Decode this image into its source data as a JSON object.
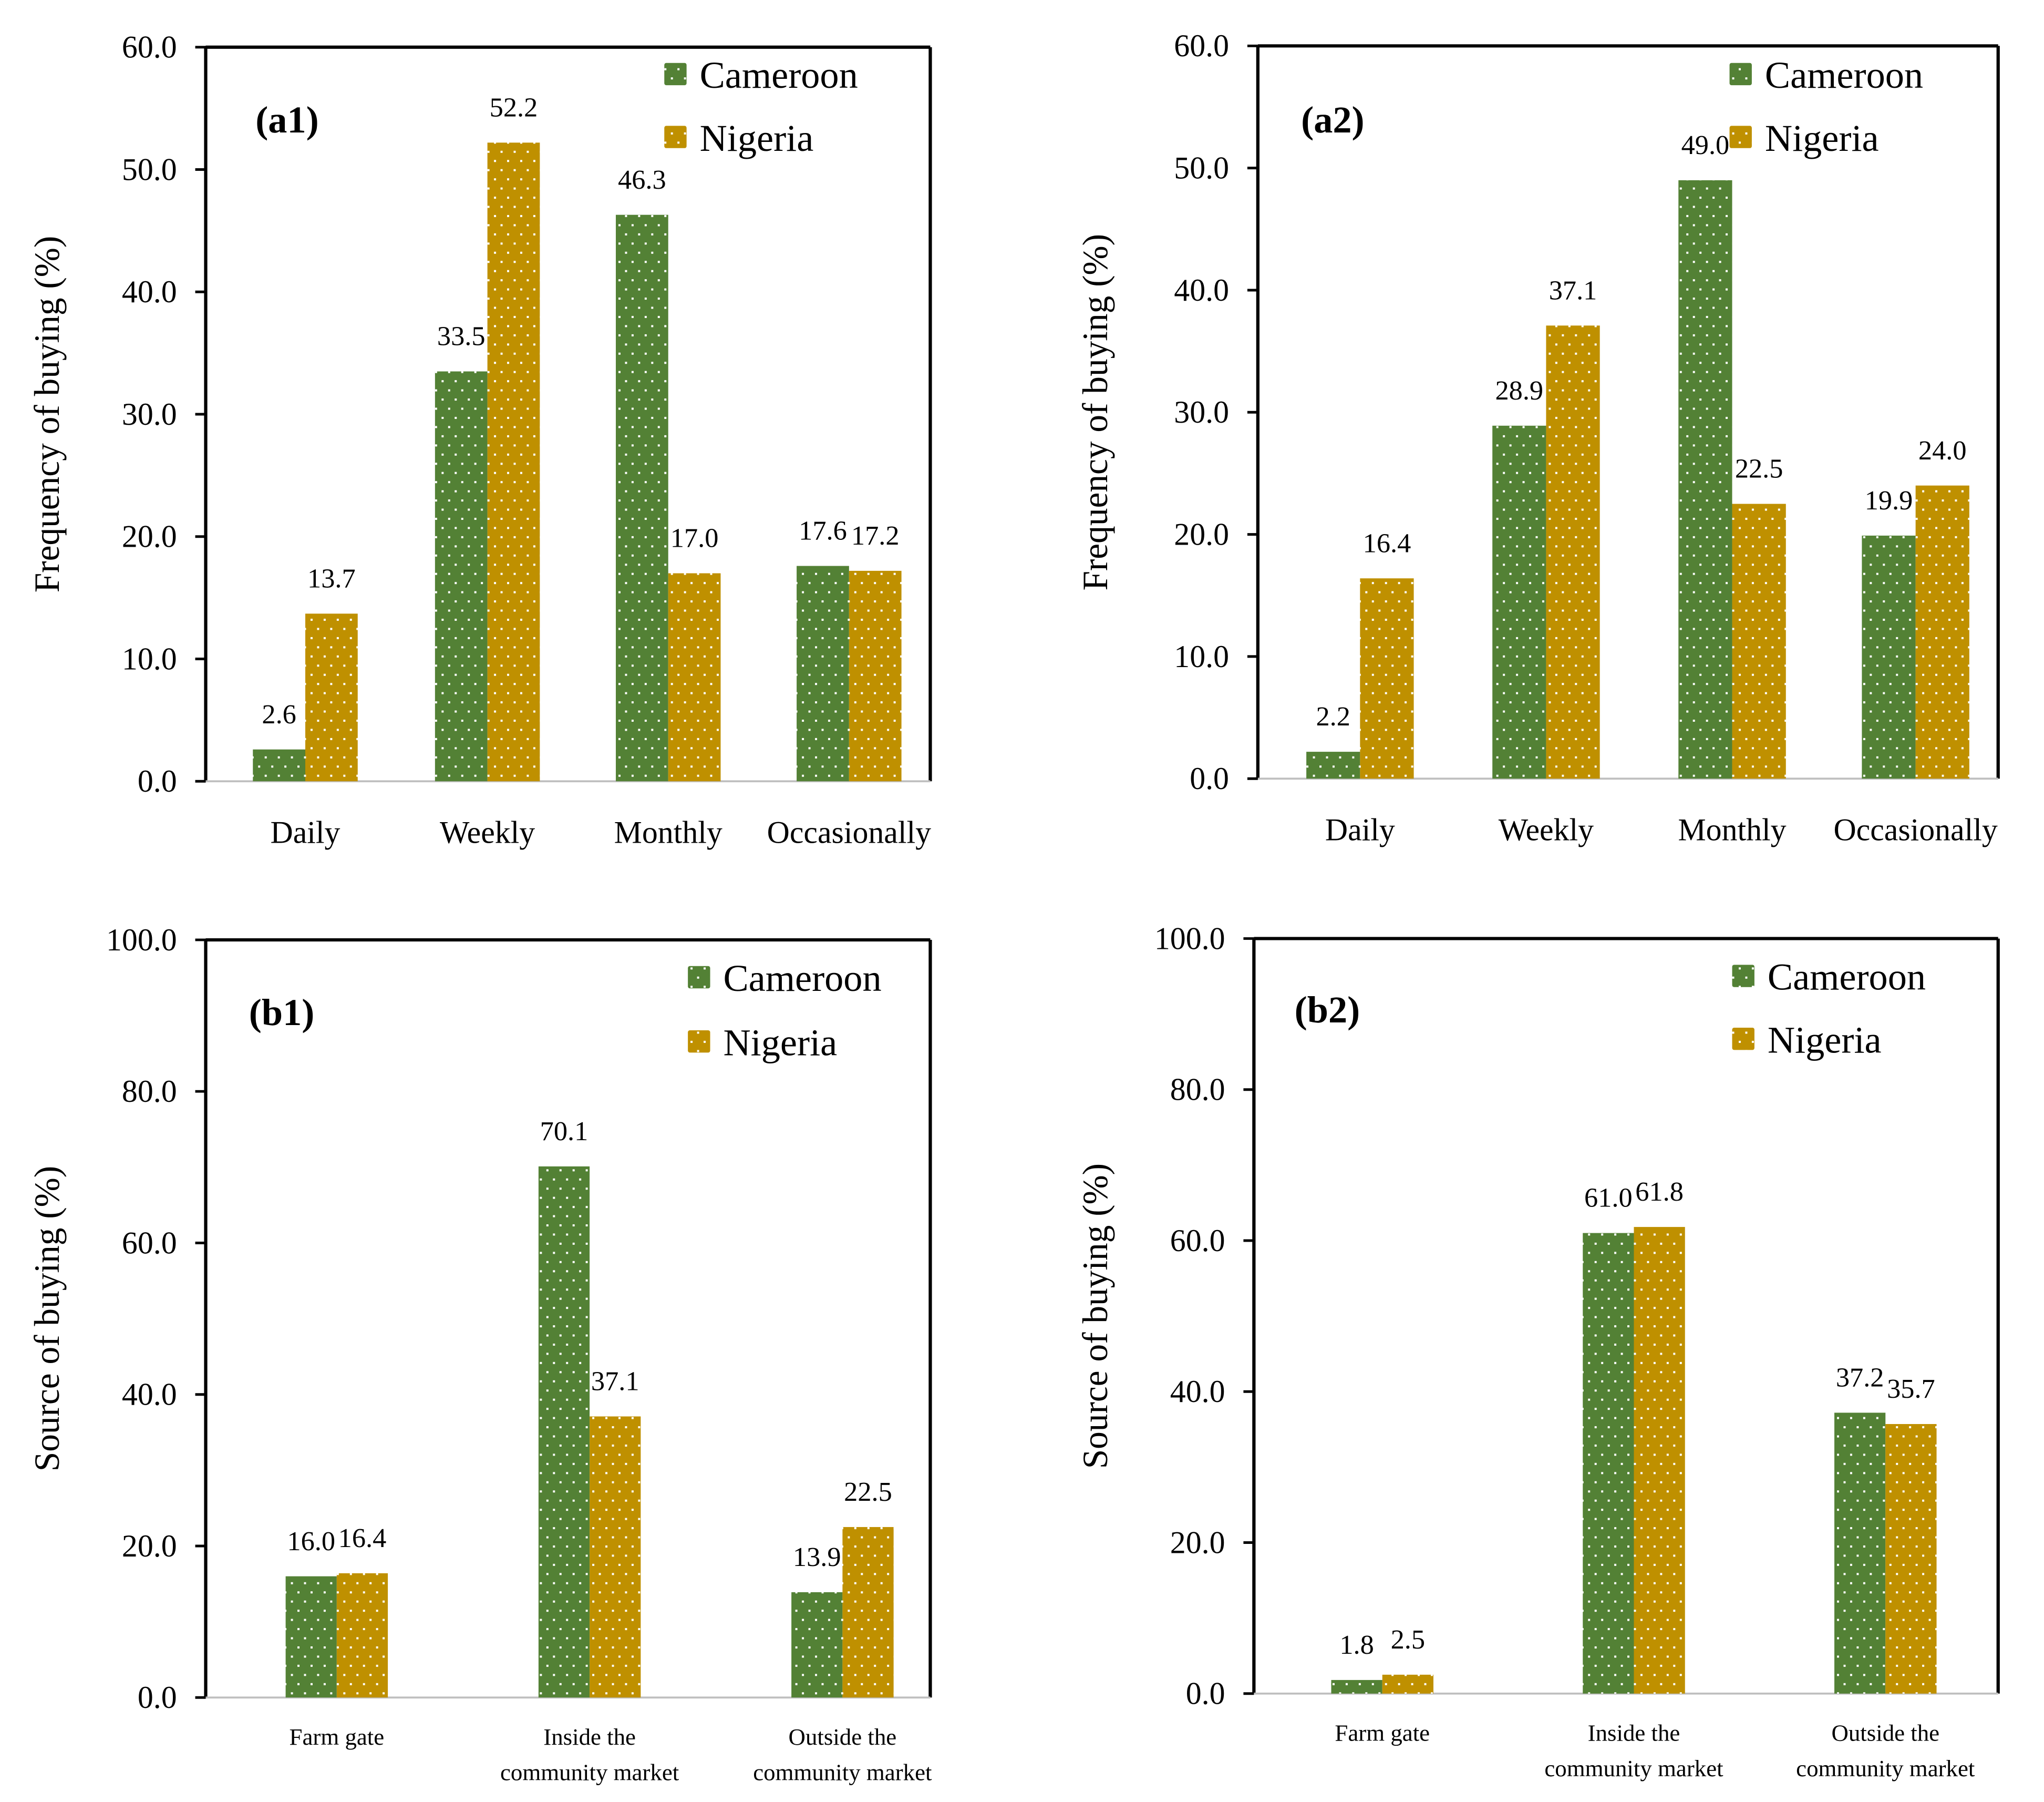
{
  "colors": {
    "Cameroon": "#538135",
    "Nigeria": "#BF9000"
  },
  "chart_data": [
    {
      "type": "bar",
      "panel": "(a1)",
      "ylabel": "Frequency of buying (%)",
      "ylim": [
        0,
        60
      ],
      "yticks": [
        "0.0",
        "10.0",
        "20.0",
        "30.0",
        "40.0",
        "50.0",
        "60.0"
      ],
      "categories": [
        "Daily",
        "Weekly",
        "Monthly",
        "Occasionally"
      ],
      "series": [
        {
          "name": "Cameroon",
          "values": [
            2.6,
            33.5,
            46.3,
            17.6
          ],
          "labels": [
            "2.6",
            "33.5",
            "46.3",
            "17.6"
          ]
        },
        {
          "name": "Nigeria",
          "values": [
            13.7,
            52.2,
            17.0,
            17.2
          ],
          "labels": [
            "13.7",
            "52.2",
            "17.0",
            "17.2"
          ]
        }
      ],
      "legend": "top-right"
    },
    {
      "type": "bar",
      "panel": "(a2)",
      "ylabel": "Frequency of buying (%)",
      "ylim": [
        0,
        60
      ],
      "yticks": [
        "0.0",
        "10.0",
        "20.0",
        "30.0",
        "40.0",
        "50.0",
        "60.0"
      ],
      "categories": [
        "Daily",
        "Weekly",
        "Monthly",
        "Occasionally"
      ],
      "series": [
        {
          "name": "Cameroon",
          "values": [
            2.2,
            28.9,
            49.0,
            19.9
          ],
          "labels": [
            "2.2",
            "28.9",
            "49.0",
            "19.9"
          ]
        },
        {
          "name": "Nigeria",
          "values": [
            16.4,
            37.1,
            22.5,
            24.0
          ],
          "labels": [
            "16.4",
            "37.1",
            "22.5",
            "24.0"
          ]
        }
      ],
      "legend": "top-right"
    },
    {
      "type": "bar",
      "panel": "(b1)",
      "ylabel": "Source of buying (%)",
      "ylim": [
        0,
        100
      ],
      "yticks": [
        "0.0",
        "20.0",
        "40.0",
        "60.0",
        "80.0",
        "100.0"
      ],
      "categories": [
        [
          "Farm gate"
        ],
        [
          "Inside the",
          "community market"
        ],
        [
          "Outside the",
          "community market"
        ]
      ],
      "series": [
        {
          "name": "Cameroon",
          "values": [
            16.0,
            70.1,
            13.9
          ],
          "labels": [
            "16.0",
            "70.1",
            "13.9"
          ]
        },
        {
          "name": "Nigeria",
          "values": [
            16.4,
            37.1,
            22.5
          ],
          "labels": [
            "16.4",
            "37.1",
            "22.5"
          ]
        }
      ],
      "legend": "top-right"
    },
    {
      "type": "bar",
      "panel": "(b2)",
      "ylabel": "Source of buying (%)",
      "ylim": [
        0,
        100
      ],
      "yticks": [
        "0.0",
        "20.0",
        "40.0",
        "60.0",
        "80.0",
        "100.0"
      ],
      "categories": [
        [
          "Farm gate"
        ],
        [
          "Inside the",
          "community market"
        ],
        [
          "Outside the",
          "community market"
        ]
      ],
      "series": [
        {
          "name": "Cameroon",
          "values": [
            1.8,
            61.0,
            37.2
          ],
          "labels": [
            "1.8",
            "61.0",
            "37.2"
          ]
        },
        {
          "name": "Nigeria",
          "values": [
            2.5,
            61.8,
            35.7
          ],
          "labels": [
            "2.5",
            "61.8",
            "35.7"
          ]
        }
      ],
      "legend": "top-right"
    }
  ]
}
